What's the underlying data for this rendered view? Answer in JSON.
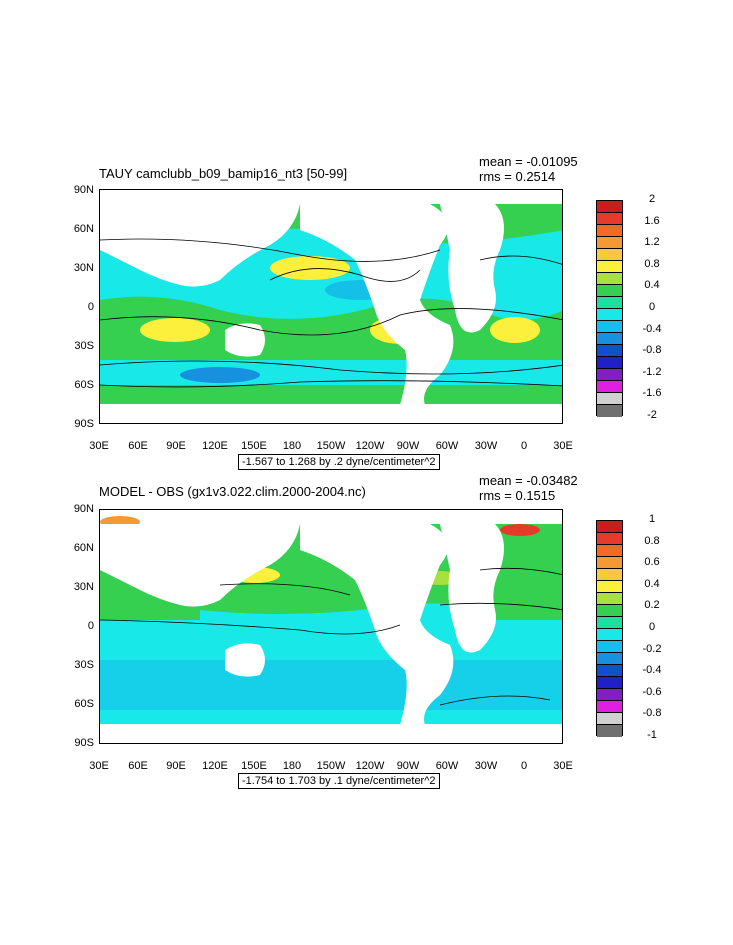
{
  "panel_top": {
    "title": "TAUY camclubb_b09_bamip16_nt3 [50-99]",
    "mean": "mean = -0.01095",
    "rms": "rms = 0.2514",
    "range_text": "-1.567 to 1.268 by .2 dyne/centimeter^2",
    "colorbar_labels": [
      "2",
      "1.6",
      "1.2",
      "0.8",
      "0.4",
      "0",
      "-0.4",
      "-0.8",
      "-1.2",
      "-1.6",
      "-2"
    ],
    "colorbar_colors": [
      "#c81e1e",
      "#e83a2a",
      "#f06a2a",
      "#f49a32",
      "#f8c840",
      "#fcf03c",
      "#a8e040",
      "#36d050",
      "#18e0a0",
      "#18e8e8",
      "#14c0e8",
      "#1890e0",
      "#1050c8",
      "#2020c8",
      "#8020c0",
      "#e020e0",
      "#d0d0d0",
      "#707070"
    ]
  },
  "panel_bottom": {
    "title": "MODEL - OBS (gx1v3.022.clim.2000-2004.nc)",
    "mean": "mean = -0.03482",
    "rms": "rms = 0.1515",
    "range_text": "-1.754 to 1.703 by .1 dyne/centimeter^2",
    "colorbar_labels": [
      "1",
      "0.8",
      "0.6",
      "0.4",
      "0.2",
      "0",
      "-0.2",
      "-0.4",
      "-0.6",
      "-0.8",
      "-1"
    ],
    "colorbar_colors": [
      "#c81e1e",
      "#e83a2a",
      "#f06a2a",
      "#f49a32",
      "#f8c840",
      "#fcf03c",
      "#a8e040",
      "#36d050",
      "#18e0a0",
      "#18e8e8",
      "#14c0e8",
      "#1890e0",
      "#1050c8",
      "#2020c8",
      "#8020c0",
      "#e020e0",
      "#d0d0d0",
      "#707070"
    ]
  },
  "lat_labels": [
    "90N",
    "60N",
    "30N",
    "0",
    "30S",
    "60S",
    "90S"
  ],
  "lon_labels": [
    "30E",
    "60E",
    "90E",
    "120E",
    "150E",
    "180",
    "150W",
    "120W",
    "90W",
    "60W",
    "30W",
    "0",
    "30E"
  ]
}
